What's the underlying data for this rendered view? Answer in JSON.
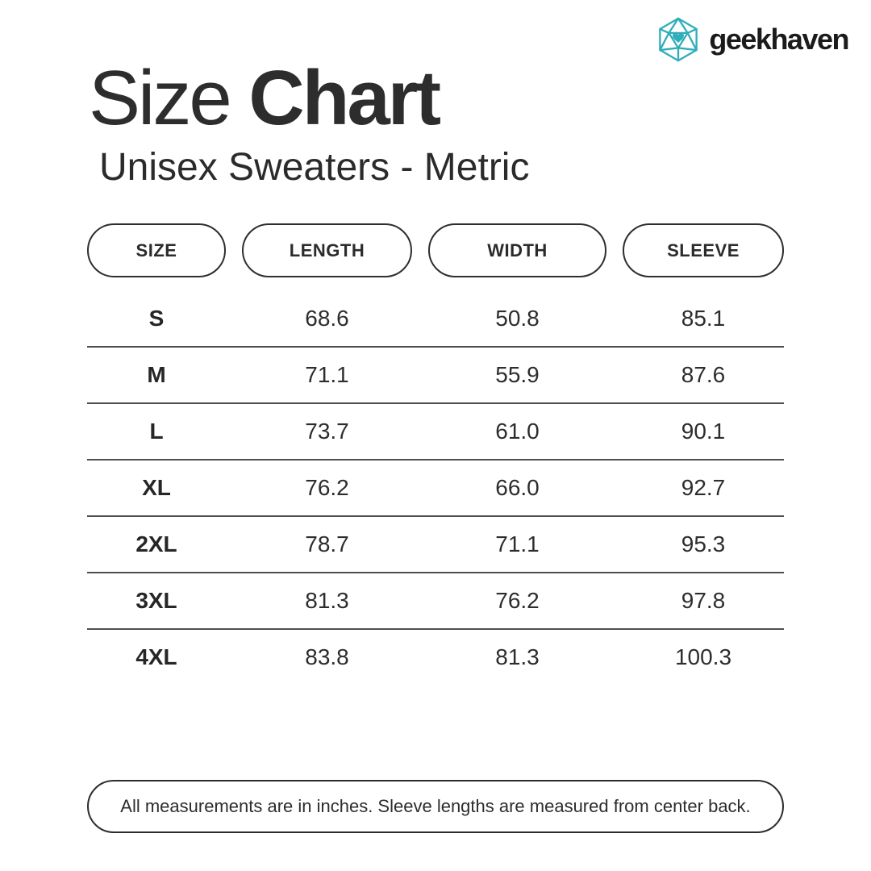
{
  "colors": {
    "teal": "#2FADBB",
    "ink": "#2B2B2B",
    "separator_line": "#4F4F4F",
    "background": "#FFFFFF"
  },
  "logo": {
    "brand": "geekhaven",
    "icon": "d20-heart-icon"
  },
  "header": {
    "title_regular": "Size",
    "title_bold": "Chart",
    "subtitle": "Unisex Sweaters - Metric"
  },
  "chart_data": {
    "type": "table",
    "title": "Size Chart",
    "subtitle": "Unisex Sweaters - Metric",
    "columns": [
      "SIZE",
      "LENGTH",
      "WIDTH",
      "SLEEVE"
    ],
    "rows": [
      {
        "size": "S",
        "length": "68.6",
        "width": "50.8",
        "sleeve": "85.1"
      },
      {
        "size": "M",
        "length": "71.1",
        "width": "55.9",
        "sleeve": "87.6"
      },
      {
        "size": "L",
        "length": "73.7",
        "width": "61.0",
        "sleeve": "90.1"
      },
      {
        "size": "XL",
        "length": "76.2",
        "width": "66.0",
        "sleeve": "92.7"
      },
      {
        "size": "2XL",
        "length": "78.7",
        "width": "71.1",
        "sleeve": "95.3"
      },
      {
        "size": "3XL",
        "length": "81.3",
        "width": "76.2",
        "sleeve": "97.8"
      },
      {
        "size": "4XL",
        "length": "83.8",
        "width": "81.3",
        "sleeve": "100.3"
      }
    ]
  },
  "footer": {
    "note": "All measurements are in inches. Sleeve lengths are measured from center back."
  }
}
